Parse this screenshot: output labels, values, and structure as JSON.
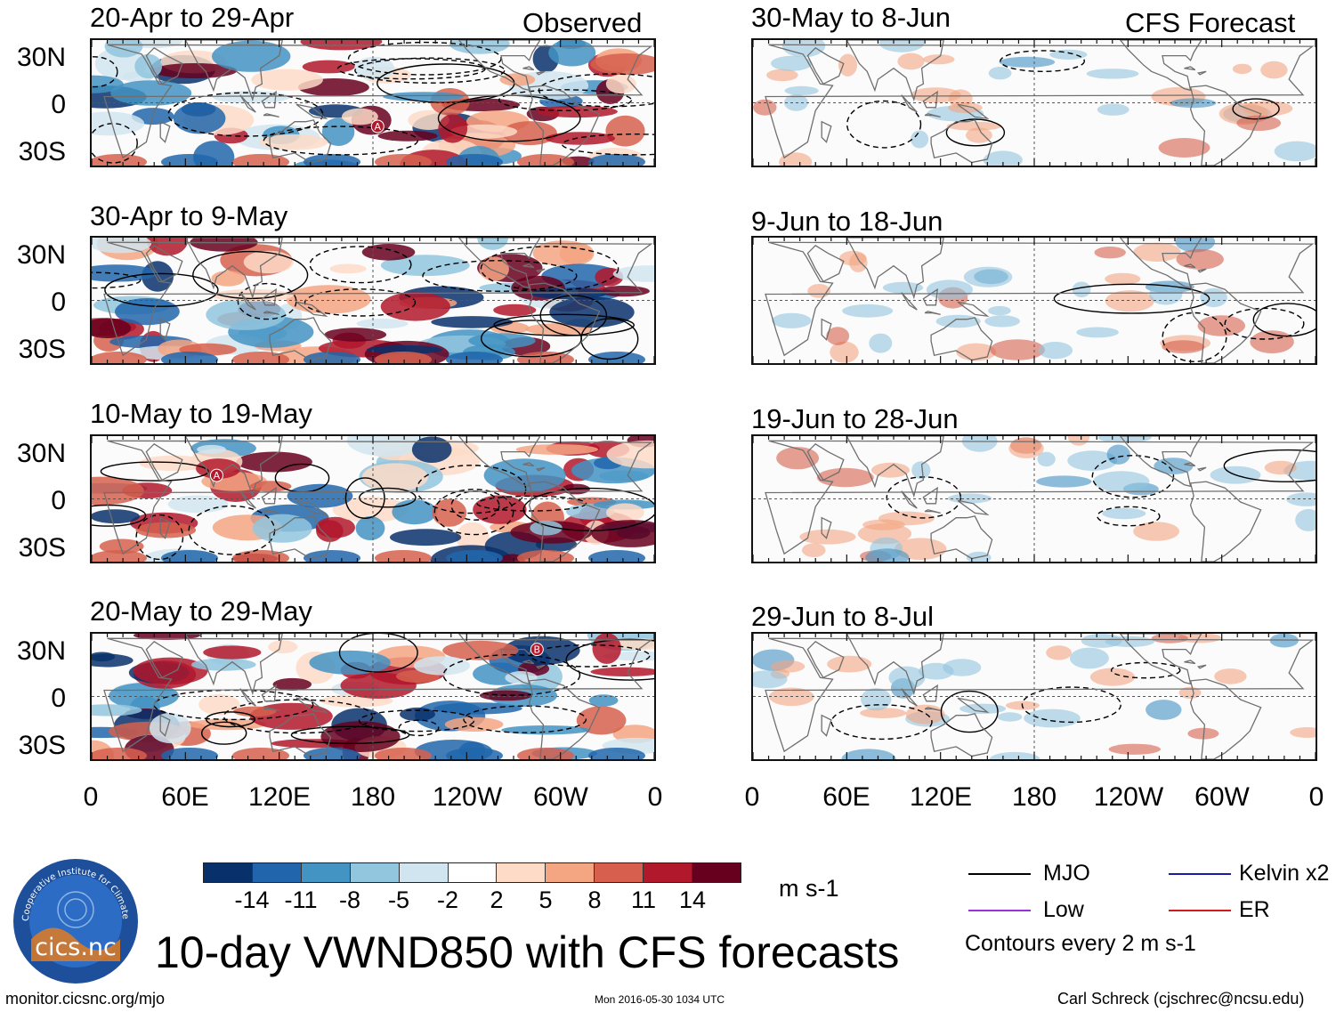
{
  "left_panel_header": "Observed",
  "right_panel_header": "CFS Forecast",
  "main_title": "10-day VWND850 with CFS forecasts",
  "website": "monitor.cicsnc.org/mjo",
  "timestamp": "Mon 2016-05-30 1034 UTC",
  "author": "Carl Schreck (cjschrec@ncsu.edu)",
  "logo": {
    "ring_text": "Cooperative Institute for Climate and Satellites",
    "label": "cics.nc"
  },
  "units": "m s-1",
  "contour_note": "Contours every 2 m s-1",
  "colorbar": {
    "labels": [
      "-14",
      "-11",
      "-8",
      "-5",
      "-2",
      "2",
      "5",
      "8",
      "11",
      "14"
    ],
    "colors": [
      "#08306b",
      "#2166ac",
      "#4393c3",
      "#92c5de",
      "#d1e5f0",
      "#ffffff",
      "#fddbc7",
      "#f4a582",
      "#d6604d",
      "#b2182b",
      "#67001f"
    ]
  },
  "legend": [
    {
      "label": "MJO",
      "color": "#000000"
    },
    {
      "label": "Kelvin x2",
      "color": "#1a1aa6"
    },
    {
      "label": "Low",
      "color": "#9b30d9"
    },
    {
      "label": "ER",
      "color": "#d11a1a"
    }
  ],
  "chart_data": {
    "type": "heatmap",
    "variable": "VWND850",
    "x_tick_labels": [
      "0",
      "60E",
      "120E",
      "180",
      "120W",
      "60W",
      "0"
    ],
    "y_tick_labels": [
      "30N",
      "0",
      "30S"
    ],
    "panels": [
      {
        "column": "Observed",
        "period": "20-Apr to 29-Apr",
        "markers": [
          {
            "label": "A",
            "lon": 183,
            "lat": -15
          }
        ]
      },
      {
        "column": "Observed",
        "period": "30-Apr to 9-May",
        "markers": []
      },
      {
        "column": "Observed",
        "period": "10-May to 19-May",
        "markers": [
          {
            "label": "A",
            "lon": 80,
            "lat": 15
          }
        ]
      },
      {
        "column": "Observed",
        "period": "20-May to 29-May",
        "markers": [
          {
            "label": "B",
            "lon": 285,
            "lat": 30
          }
        ]
      },
      {
        "column": "CFS Forecast",
        "period": "30-May to 8-Jun",
        "markers": []
      },
      {
        "column": "CFS Forecast",
        "period": "9-Jun to 18-Jun",
        "markers": []
      },
      {
        "column": "CFS Forecast",
        "period": "19-Jun to 28-Jun",
        "markers": []
      },
      {
        "column": "CFS Forecast",
        "period": "29-Jun to 8-Jul",
        "markers": []
      }
    ]
  }
}
